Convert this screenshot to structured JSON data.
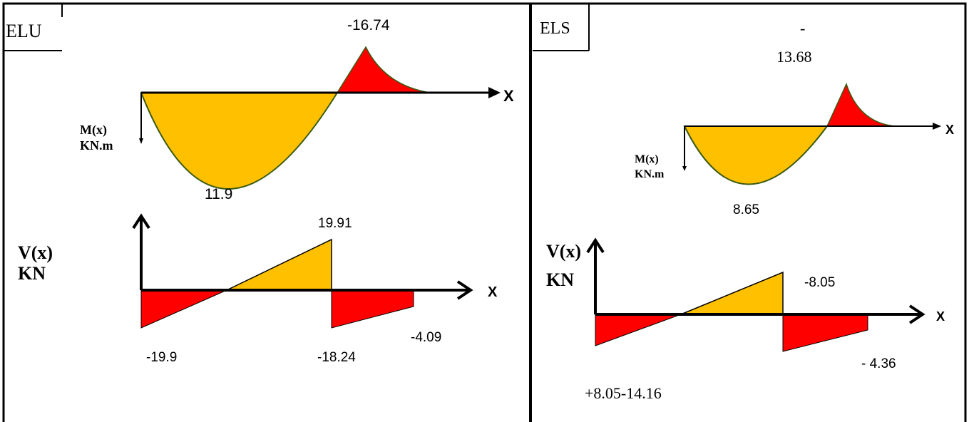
{
  "colors": {
    "positive_fill": "#FFC000",
    "negative_fill": "#FF0000",
    "curve_stroke": "#3A5A10",
    "line": "#000000"
  },
  "elu": {
    "label": "ELU",
    "moment": {
      "axis_label": "X",
      "unit_label_1": "M(x)",
      "unit_label_2": "KN.m",
      "max_positive_label": "11.9",
      "max_negative_label": "-16.74"
    },
    "shear": {
      "axis_label": "X",
      "unit_label_1": "V(x)",
      "unit_label_2": "KN",
      "label_left": "-19.9",
      "label_peak": "19.91",
      "label_drop": "-18.24",
      "label_end": "-4.09"
    }
  },
  "els": {
    "label": "ELS",
    "moment": {
      "axis_label": "X",
      "unit_label_1": "M(x)",
      "unit_label_2": "KN.m",
      "max_positive_label": "8.65",
      "max_negative_label_part1": "-",
      "max_negative_label_part2": "13.68"
    },
    "shear": {
      "axis_label": "X",
      "unit_label_1": "V(x)",
      "unit_label_2": "KN",
      "label_left": "+8.05-14.16",
      "label_peak": "-8.05",
      "label_end": "- 4.36"
    }
  }
}
